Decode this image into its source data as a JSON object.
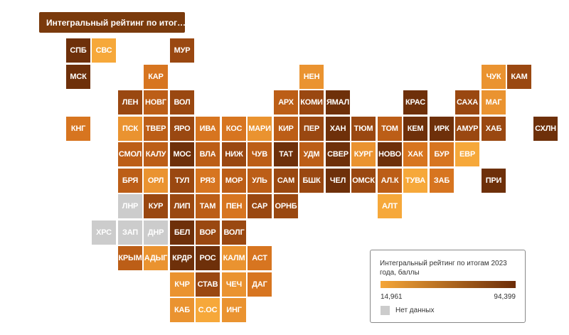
{
  "dropdown": {
    "label": "Интегральный рейтинг по итог…",
    "icon": "chevron-down-icon"
  },
  "colors": {
    "low": "#f5a638",
    "high": "#6b2c08",
    "no_data": "#cccccc",
    "scale": [
      "#f6a83a",
      "#ea9330",
      "#d77520",
      "#bc5e17",
      "#9a4811",
      "#6e300a"
    ]
  },
  "regions": [
    {
      "label": "СПБ",
      "col": 1,
      "row": 0,
      "level": 5
    },
    {
      "label": "СВС",
      "col": 2,
      "row": 0,
      "level": 0
    },
    {
      "label": "МУР",
      "col": 5,
      "row": 0,
      "level": 4
    },
    {
      "label": "МСК",
      "col": 1,
      "row": 1,
      "level": 5
    },
    {
      "label": "КАР",
      "col": 4,
      "row": 1,
      "level": 2
    },
    {
      "label": "НЕН",
      "col": 10,
      "row": 1,
      "level": 1
    },
    {
      "label": "ЧУК",
      "col": 17,
      "row": 1,
      "level": 1
    },
    {
      "label": "КАМ",
      "col": 18,
      "row": 1,
      "level": 4
    },
    {
      "label": "ЛЕН",
      "col": 3,
      "row": 2,
      "level": 4
    },
    {
      "label": "НОВГ",
      "col": 4,
      "row": 2,
      "level": 3
    },
    {
      "label": "ВОЛ",
      "col": 5,
      "row": 2,
      "level": 4
    },
    {
      "label": "АРХ",
      "col": 9,
      "row": 2,
      "level": 3
    },
    {
      "label": "КОМИ",
      "col": 10,
      "row": 2,
      "level": 4
    },
    {
      "label": "ЯМАЛ",
      "col": 11,
      "row": 2,
      "level": 5
    },
    {
      "label": "КРАС",
      "col": 14,
      "row": 2,
      "level": 5
    },
    {
      "label": "САХА",
      "col": 16,
      "row": 2,
      "level": 4
    },
    {
      "label": "МАГ",
      "col": 17,
      "row": 2,
      "level": 1
    },
    {
      "label": "КНГ",
      "col": 1,
      "row": 3,
      "level": 2
    },
    {
      "label": "ПСК",
      "col": 3,
      "row": 3,
      "level": 1
    },
    {
      "label": "ТВЕР",
      "col": 4,
      "row": 3,
      "level": 3
    },
    {
      "label": "ЯРО",
      "col": 5,
      "row": 3,
      "level": 4
    },
    {
      "label": "ИВА",
      "col": 6,
      "row": 3,
      "level": 2
    },
    {
      "label": "КОС",
      "col": 7,
      "row": 3,
      "level": 2
    },
    {
      "label": "МАРИ",
      "col": 8,
      "row": 3,
      "level": 1
    },
    {
      "label": "КИР",
      "col": 9,
      "row": 3,
      "level": 3
    },
    {
      "label": "ПЕР",
      "col": 10,
      "row": 3,
      "level": 4
    },
    {
      "label": "ХАН",
      "col": 11,
      "row": 3,
      "level": 5
    },
    {
      "label": "ТЮМ",
      "col": 12,
      "row": 3,
      "level": 4
    },
    {
      "label": "ТОМ",
      "col": 13,
      "row": 3,
      "level": 3
    },
    {
      "label": "КЕМ",
      "col": 14,
      "row": 3,
      "level": 5
    },
    {
      "label": "ИРК",
      "col": 15,
      "row": 3,
      "level": 5
    },
    {
      "label": "АМУР",
      "col": 16,
      "row": 3,
      "level": 4
    },
    {
      "label": "ХАБ",
      "col": 17,
      "row": 3,
      "level": 4
    },
    {
      "label": "СХЛН",
      "col": 19,
      "row": 3,
      "level": 5
    },
    {
      "label": "СМОЛ",
      "col": 3,
      "row": 4,
      "level": 3
    },
    {
      "label": "КАЛУ",
      "col": 4,
      "row": 4,
      "level": 3
    },
    {
      "label": "МОС",
      "col": 5,
      "row": 4,
      "level": 5
    },
    {
      "label": "ВЛА",
      "col": 6,
      "row": 4,
      "level": 3
    },
    {
      "label": "НИЖ",
      "col": 7,
      "row": 4,
      "level": 4
    },
    {
      "label": "ЧУВ",
      "col": 8,
      "row": 4,
      "level": 3
    },
    {
      "label": "ТАТ",
      "col": 9,
      "row": 4,
      "level": 5
    },
    {
      "label": "УДМ",
      "col": 10,
      "row": 4,
      "level": 3
    },
    {
      "label": "СВЕР",
      "col": 11,
      "row": 4,
      "level": 5
    },
    {
      "label": "КУРГ",
      "col": 12,
      "row": 4,
      "level": 1
    },
    {
      "label": "НОВО",
      "col": 13,
      "row": 4,
      "level": 5
    },
    {
      "label": "ХАК",
      "col": 14,
      "row": 4,
      "level": 2
    },
    {
      "label": "БУР",
      "col": 15,
      "row": 4,
      "level": 2
    },
    {
      "label": "ЕВР",
      "col": 16,
      "row": 4,
      "level": 0
    },
    {
      "label": "БРЯ",
      "col": 3,
      "row": 5,
      "level": 3
    },
    {
      "label": "ОРЛ",
      "col": 4,
      "row": 5,
      "level": 1
    },
    {
      "label": "ТУЛ",
      "col": 5,
      "row": 5,
      "level": 4
    },
    {
      "label": "РЯЗ",
      "col": 6,
      "row": 5,
      "level": 2
    },
    {
      "label": "МОР",
      "col": 7,
      "row": 5,
      "level": 3
    },
    {
      "label": "УЛЬ",
      "col": 8,
      "row": 5,
      "level": 3
    },
    {
      "label": "САМ",
      "col": 9,
      "row": 5,
      "level": 4
    },
    {
      "label": "БШК",
      "col": 10,
      "row": 5,
      "level": 4
    },
    {
      "label": "ЧЕЛ",
      "col": 11,
      "row": 5,
      "level": 5
    },
    {
      "label": "ОМСК",
      "col": 12,
      "row": 5,
      "level": 4
    },
    {
      "label": "АЛ.К",
      "col": 13,
      "row": 5,
      "level": 3
    },
    {
      "label": "ТУВА",
      "col": 14,
      "row": 5,
      "level": 0
    },
    {
      "label": "ЗАБ",
      "col": 15,
      "row": 5,
      "level": 2
    },
    {
      "label": "ПРИ",
      "col": 17,
      "row": 5,
      "level": 5
    },
    {
      "label": "ЛНР",
      "col": 3,
      "row": 6,
      "level": -1
    },
    {
      "label": "КУР",
      "col": 4,
      "row": 6,
      "level": 4
    },
    {
      "label": "ЛИП",
      "col": 5,
      "row": 6,
      "level": 4
    },
    {
      "label": "ТАМ",
      "col": 6,
      "row": 6,
      "level": 3
    },
    {
      "label": "ПЕН",
      "col": 7,
      "row": 6,
      "level": 2
    },
    {
      "label": "САР",
      "col": 8,
      "row": 6,
      "level": 4
    },
    {
      "label": "ОРНБ",
      "col": 9,
      "row": 6,
      "level": 4
    },
    {
      "label": "АЛТ",
      "col": 13,
      "row": 6,
      "level": 0
    },
    {
      "label": "ХРС",
      "col": 2,
      "row": 7,
      "level": -1
    },
    {
      "label": "ЗАП",
      "col": 3,
      "row": 7,
      "level": -1
    },
    {
      "label": "ДНР",
      "col": 4,
      "row": 7,
      "level": -1
    },
    {
      "label": "БЕЛ",
      "col": 5,
      "row": 7,
      "level": 5
    },
    {
      "label": "ВОР",
      "col": 6,
      "row": 7,
      "level": 4
    },
    {
      "label": "ВОЛГ",
      "col": 7,
      "row": 7,
      "level": 4
    },
    {
      "label": "КРЫМ",
      "col": 3,
      "row": 8,
      "level": 3
    },
    {
      "label": "АДЫГ",
      "col": 4,
      "row": 8,
      "level": 1
    },
    {
      "label": "КРДР",
      "col": 5,
      "row": 8,
      "level": 5
    },
    {
      "label": "РОС",
      "col": 6,
      "row": 8,
      "level": 5
    },
    {
      "label": "КАЛМ",
      "col": 7,
      "row": 8,
      "level": 1
    },
    {
      "label": "АСТ",
      "col": 8,
      "row": 8,
      "level": 2
    },
    {
      "label": "КЧР",
      "col": 5,
      "row": 9,
      "level": 1
    },
    {
      "label": "СТАВ",
      "col": 6,
      "row": 9,
      "level": 4
    },
    {
      "label": "ЧЕЧ",
      "col": 7,
      "row": 9,
      "level": 1
    },
    {
      "label": "ДАГ",
      "col": 8,
      "row": 9,
      "level": 2
    },
    {
      "label": "КАБ",
      "col": 5,
      "row": 10,
      "level": 1
    },
    {
      "label": "С.ОС",
      "col": 6,
      "row": 10,
      "level": 0
    },
    {
      "label": "ИНГ",
      "col": 7,
      "row": 10,
      "level": 1
    }
  ],
  "legend": {
    "title": "Интегральный рейтинг по итогам 2023 года, баллы",
    "min": "14,961",
    "max": "94,399",
    "no_data_label": "Нет данных"
  }
}
